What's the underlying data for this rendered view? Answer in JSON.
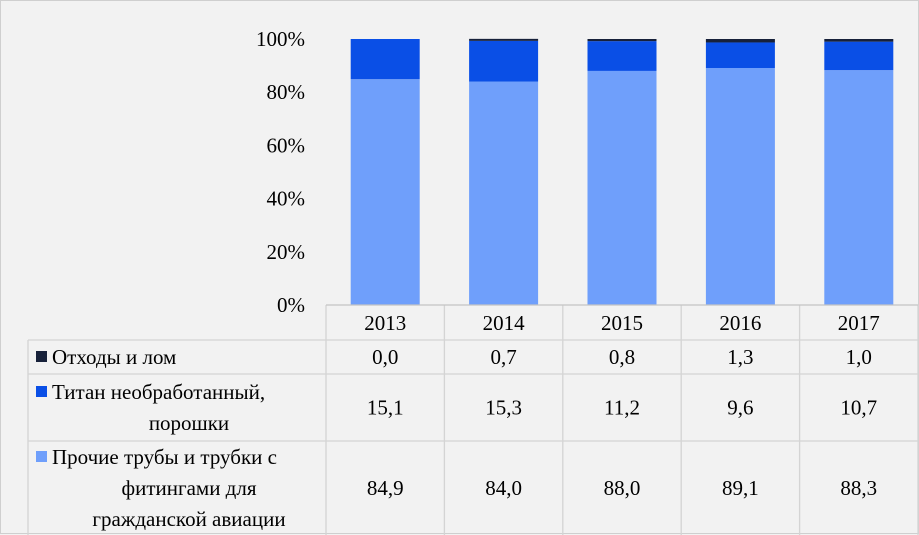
{
  "chart_data": {
    "type": "bar",
    "stacked": true,
    "percent": true,
    "categories": [
      "2013",
      "2014",
      "2015",
      "2016",
      "2017"
    ],
    "series": [
      {
        "name": "Прочие трубы и трубки с фитингами для гражданской авиации",
        "legend_lines": [
          "Прочие трубы и трубки с",
          "фитингами для",
          "гражданской авиации"
        ],
        "color": "#6f9ffb",
        "values": [
          84.9,
          84.0,
          88.0,
          89.1,
          88.3
        ],
        "labels": [
          "84,9",
          "84,0",
          "88,0",
          "89,1",
          "88,3"
        ]
      },
      {
        "name": "Титан необработанный, порошки",
        "legend_lines": [
          "Титан  необработанный,",
          "порошки"
        ],
        "color": "#0a4fe6",
        "values": [
          15.1,
          15.3,
          11.2,
          9.6,
          10.7
        ],
        "labels": [
          "15,1",
          "15,3",
          "11,2",
          "9,6",
          "10,7"
        ]
      },
      {
        "name": "Отходы и лом",
        "legend_lines": [
          "Отходы и лом"
        ],
        "color": "#17213a",
        "values": [
          0.0,
          0.7,
          0.8,
          1.3,
          1.0
        ],
        "labels": [
          "0,0",
          "0,7",
          "0,8",
          "1,3",
          "1,0"
        ]
      }
    ],
    "table_order": [
      2,
      1,
      0
    ],
    "yticks": [
      "0%",
      "20%",
      "40%",
      "60%",
      "80%",
      "100%"
    ],
    "ylim": [
      0,
      100
    ],
    "data_table": true,
    "grid": false
  }
}
